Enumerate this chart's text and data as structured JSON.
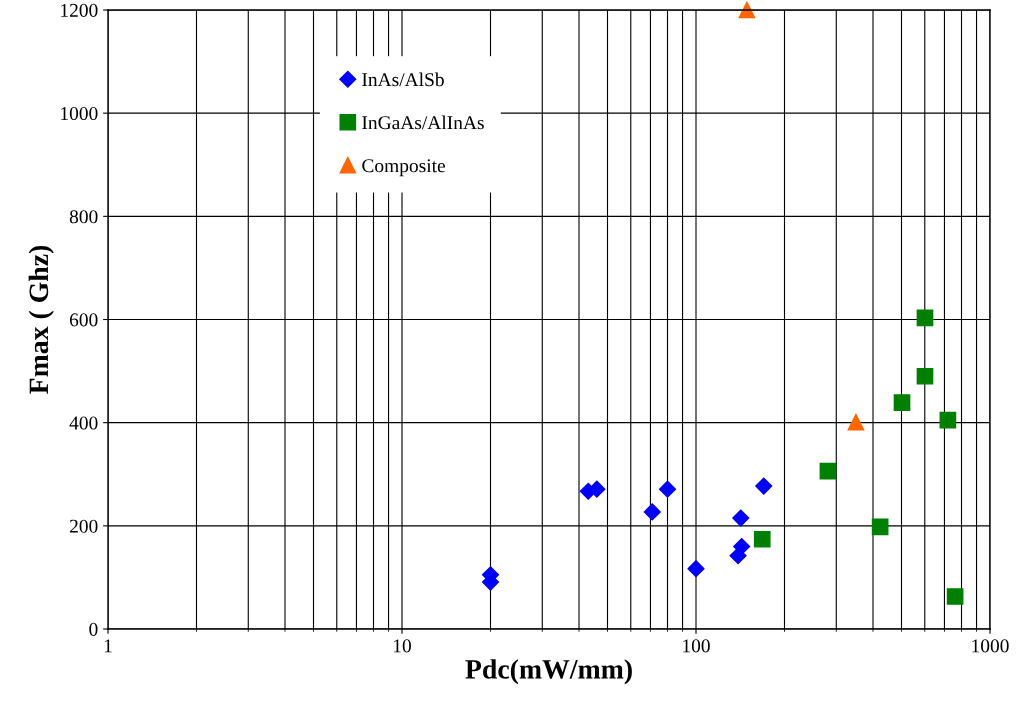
{
  "chart_data": {
    "type": "scatter",
    "xlabel": "Pdc(mW/mm)",
    "ylabel": "Fmax ( Ghz)",
    "log": "x",
    "grid": true,
    "legend": "top left",
    "xlim": [
      1,
      1000
    ],
    "xticks": [
      1,
      10,
      100,
      1000
    ],
    "ylim": [
      0,
      1200
    ],
    "yticks": [
      0,
      200,
      400,
      600,
      800,
      1000,
      1200
    ],
    "series": [
      {
        "name": "InAs/AlSb",
        "color": "#0000ff",
        "marker": "diamond",
        "x": [
          20,
          20,
          43,
          46,
          71,
          80,
          100,
          142,
          139,
          143,
          170
        ],
        "values": [
          105,
          91,
          267,
          271,
          227,
          271,
          117,
          215,
          142,
          160,
          277
        ]
      },
      {
        "name": "InGaAs/AlInAs",
        "color": "#008000",
        "marker": "square",
        "x": [
          168,
          281,
          423,
          502,
          601,
          601,
          719,
          761
        ],
        "values": [
          174,
          306,
          198,
          439,
          490,
          603,
          405,
          63
        ]
      },
      {
        "name": "Composite",
        "color": "#ff6600",
        "marker": "triangle",
        "x": [
          149,
          350
        ],
        "values": [
          1200,
          401
        ]
      }
    ]
  }
}
